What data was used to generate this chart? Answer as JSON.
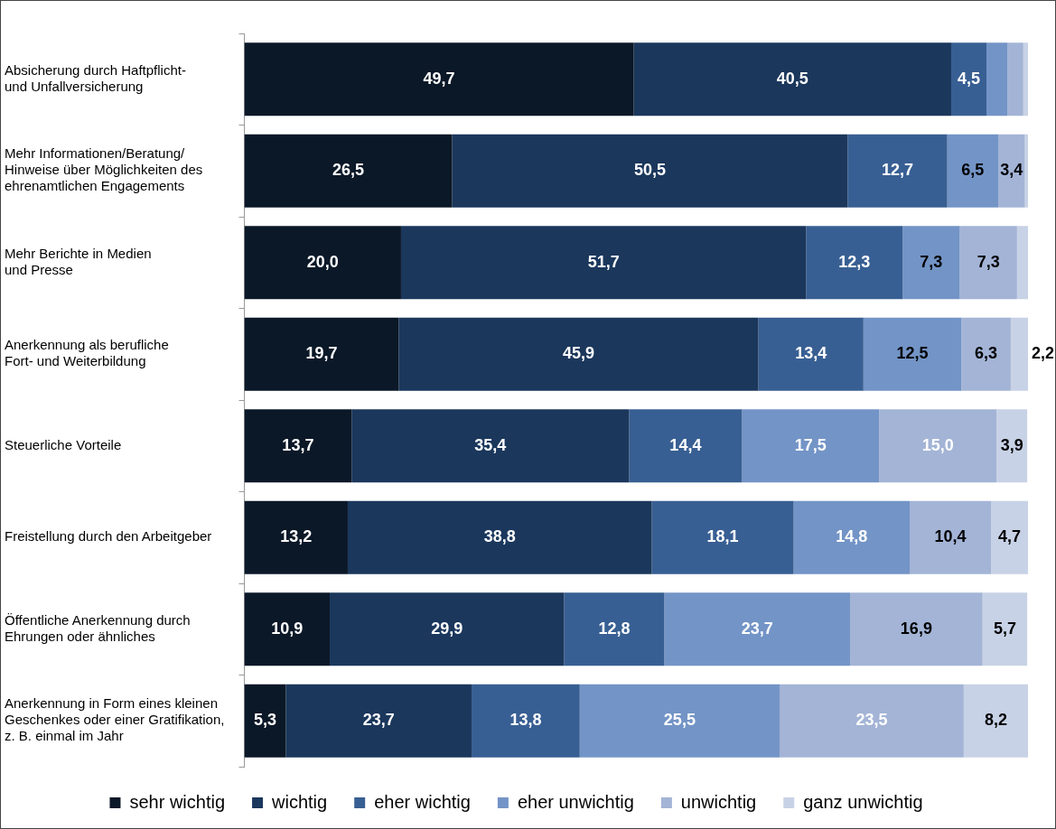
{
  "chart_data": {
    "type": "bar",
    "orientation": "horizontal",
    "stacked": true,
    "legend": "bottom",
    "grid": false,
    "tick_labels": "y",
    "xlim": [
      0,
      100
    ],
    "categories": [
      "Absicherung durch Haftpflicht-\nund Unfallversicherung",
      "Mehr Informationen/Beratung/\nHinweise über Möglichkeiten des\nehrenamtlichen Engagements",
      "Mehr Berichte in Medien\nund Presse",
      "Anerkennung als berufliche\nFort- und Weiterbildung",
      "Steuerliche Vorteile",
      "Freistellung durch den Arbeitgeber",
      "Öffentliche Anerkennung durch\nEhrungen oder ähnliches",
      "Anerkennung in Form eines kleinen\nGeschenkes oder einer Gratifikation,\nz. B. einmal im Jahr"
    ],
    "series": [
      {
        "name": "sehr wichtig",
        "color": "#0b1828",
        "values": [
          49.7,
          26.5,
          20.0,
          19.7,
          13.7,
          13.2,
          10.9,
          5.3
        ],
        "value_labels": [
          "49,7",
          "26,5",
          "20,0",
          "19,7",
          "13,7",
          "13,2",
          "10,9",
          "5,3"
        ]
      },
      {
        "name": "wichtig",
        "color": "#1b375c",
        "values": [
          40.5,
          50.5,
          51.7,
          45.9,
          35.4,
          38.8,
          29.9,
          23.7
        ],
        "value_labels": [
          "40,5",
          "50,5",
          "51,7",
          "45,9",
          "35,4",
          "38,8",
          "29,9",
          "23,7"
        ]
      },
      {
        "name": "eher wichtig",
        "color": "#385f93",
        "values": [
          4.5,
          12.7,
          12.3,
          13.4,
          14.4,
          18.1,
          12.8,
          13.8
        ],
        "value_labels": [
          "4,5",
          "12,7",
          "12,3",
          "13,4",
          "14,4",
          "18,1",
          "12,8",
          "13,8"
        ]
      },
      {
        "name": "eher unwichtig",
        "color": "#7394c6",
        "values": [
          2.7,
          6.5,
          7.3,
          12.5,
          17.5,
          14.8,
          23.7,
          25.5
        ],
        "value_labels": [
          null,
          "6,5",
          "7,3",
          "12,5",
          "17,5",
          "14,8",
          "23,7",
          "25,5"
        ]
      },
      {
        "name": "unwichtig",
        "color": "#a3b4d6",
        "values": [
          2.0,
          3.4,
          7.3,
          6.3,
          15.0,
          10.4,
          16.9,
          23.5
        ],
        "value_labels": [
          null,
          "3,4",
          "7,3",
          "6,3",
          "15,0",
          "10,4",
          "16,9",
          "23,5"
        ]
      },
      {
        "name": "ganz unwichtig",
        "color": "#c8d2e6",
        "values": [
          0.6,
          0.4,
          1.4,
          2.2,
          3.9,
          4.7,
          5.7,
          8.2
        ],
        "value_labels": [
          null,
          null,
          null,
          "2,2",
          "3,9",
          "4,7",
          "5,7",
          "8,2"
        ]
      }
    ]
  }
}
